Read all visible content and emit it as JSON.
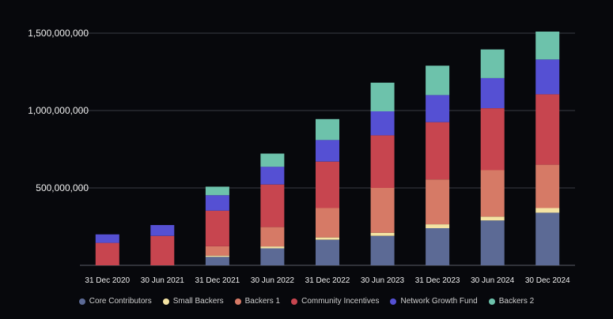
{
  "chart_data": {
    "type": "bar",
    "stacked": true,
    "categories": [
      "31 Dec 2020",
      "30 Jun 2021",
      "31 Dec 2021",
      "30 Jun 2022",
      "31 Dec 2022",
      "30 Jun 2023",
      "31 Dec 2023",
      "30 Jun 2024",
      "30 Dec 2024"
    ],
    "y_ticks": [
      {
        "value": 500000000,
        "label": "500,000,000"
      },
      {
        "value": 1000000000,
        "label": "1,000,000,000"
      },
      {
        "value": 1500000000,
        "label": "1,500,000,000"
      }
    ],
    "ylim": [
      0,
      1500000000
    ],
    "grid": true,
    "legend_position": "bottom",
    "series": [
      {
        "name": "Core Contributors",
        "color": "#5c6a95",
        "values": [
          0,
          0,
          55000000,
          110000000,
          165000000,
          190000000,
          240000000,
          290000000,
          340000000
        ]
      },
      {
        "name": "Small Backers",
        "color": "#f4e3a3",
        "values": [
          0,
          0,
          8000000,
          12000000,
          15000000,
          20000000,
          25000000,
          25000000,
          30000000
        ]
      },
      {
        "name": "Backers 1",
        "color": "#d67a66",
        "values": [
          0,
          0,
          60000000,
          125000000,
          190000000,
          290000000,
          290000000,
          300000000,
          280000000
        ]
      },
      {
        "name": "Community Incentives",
        "color": "#c7454f",
        "values": [
          145000000,
          190000000,
          230000000,
          275000000,
          300000000,
          340000000,
          370000000,
          400000000,
          455000000
        ]
      },
      {
        "name": "Network Growth Fund",
        "color": "#5550d3",
        "values": [
          55000000,
          70000000,
          100000000,
          115000000,
          140000000,
          155000000,
          175000000,
          195000000,
          225000000
        ]
      },
      {
        "name": "Backers 2",
        "color": "#6dc2ab",
        "values": [
          0,
          0,
          55000000,
          85000000,
          135000000,
          185000000,
          190000000,
          185000000,
          180000000
        ]
      }
    ]
  }
}
